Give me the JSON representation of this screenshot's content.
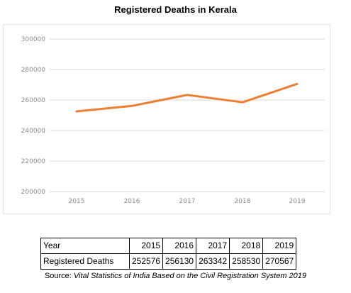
{
  "chart_data": {
    "type": "line",
    "title": "Registered Deaths in Kerala",
    "xlabel": "",
    "ylabel": "",
    "categories": [
      "2015",
      "2016",
      "2017",
      "2018",
      "2019"
    ],
    "series": [
      {
        "name": "Registered Deaths",
        "values": [
          252576,
          256130,
          263342,
          258530,
          270567
        ],
        "color": "#ed7d31"
      }
    ],
    "ylim": [
      200000,
      300000
    ],
    "yticks": [
      200000,
      220000,
      240000,
      260000,
      280000,
      300000
    ],
    "ytick_labels": [
      "200000",
      "220000",
      "240000",
      "260000",
      "280000",
      "300000"
    ],
    "grid": true,
    "legend": "none"
  },
  "table": {
    "header_label": "Year",
    "row_label": "Registered Deaths",
    "years": [
      "2015",
      "2016",
      "2017",
      "2018",
      "2019"
    ],
    "values": [
      "252576",
      "256130",
      "263342",
      "258530",
      "270567"
    ]
  },
  "source": {
    "prefix": "Source: ",
    "text": "Vital Statistics of India Based on the Civil Registration System 2019"
  },
  "colors": {
    "line": "#ed7d31",
    "grid": "#d9d9d9",
    "tick": "#8c8c8c"
  }
}
